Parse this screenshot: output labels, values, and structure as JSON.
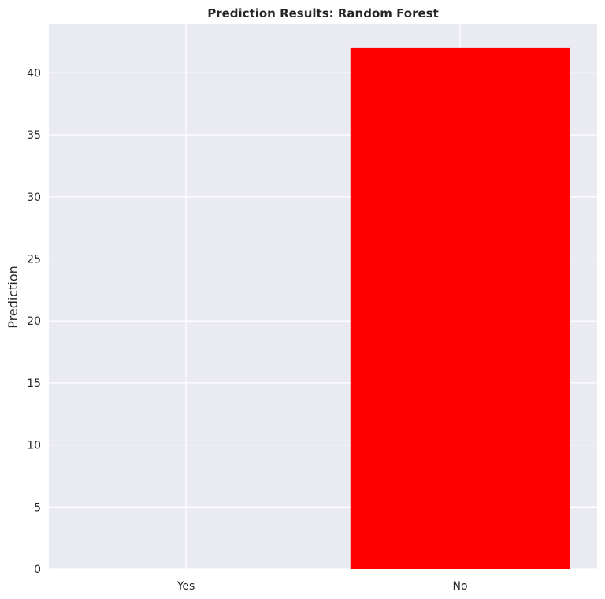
{
  "chart_data": {
    "type": "bar",
    "title": "Prediction Results: Random Forest",
    "xlabel": "",
    "ylabel": "Prediction",
    "categories": [
      "Yes",
      "No"
    ],
    "values": [
      0,
      42
    ],
    "bar_color": "#ff0000",
    "background_color": "#eaeaf2",
    "grid_color": "#ffffff",
    "grid": true,
    "ylim": [
      0,
      43.9
    ],
    "yticks": [
      0,
      5,
      10,
      15,
      20,
      25,
      30,
      35,
      40
    ]
  }
}
